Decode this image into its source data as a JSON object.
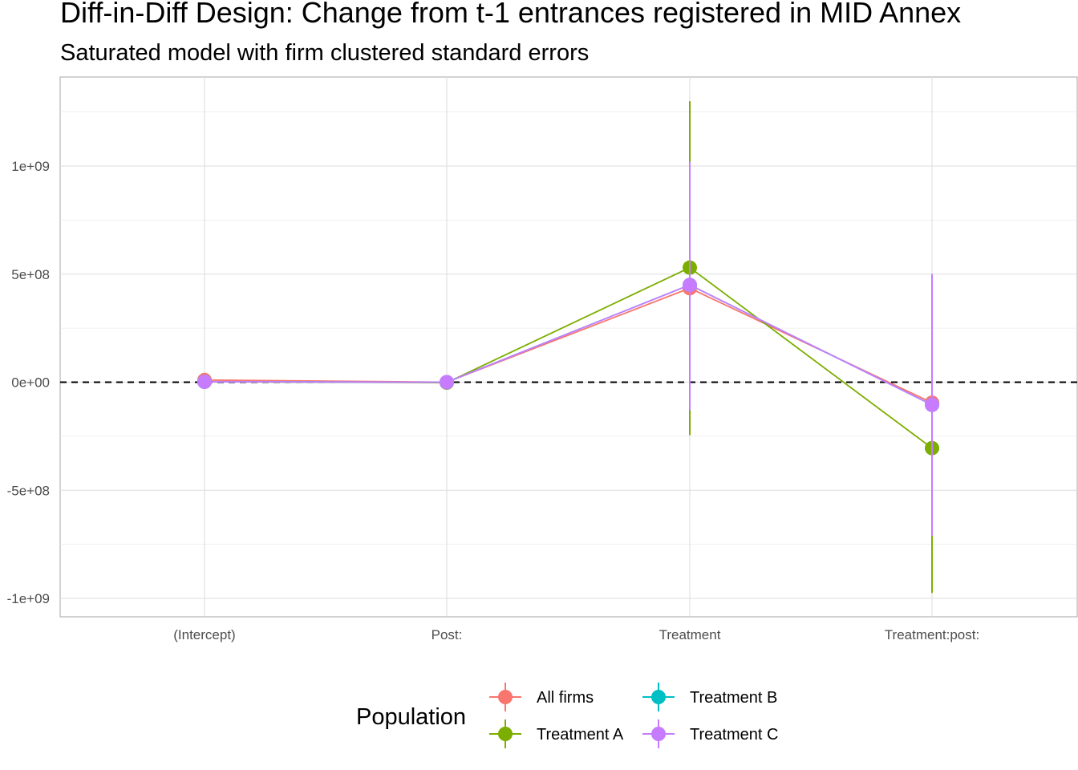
{
  "chart_data": {
    "type": "line",
    "title": "Diff-in-Diff Design: Change from t-1 entrances registered in MID Annex",
    "subtitle": "Saturated model with firm clustered standard errors",
    "xlabel": "",
    "ylabel": "",
    "categories": [
      "(Intercept)",
      "Post:",
      "Treatment",
      "Treatment:post:"
    ],
    "ylim": [
      -1080000000,
      1380000000
    ],
    "y_ticks": [
      -1000000000,
      -500000000,
      0,
      500000000,
      1000000000
    ],
    "y_tick_labels": [
      "-1e+09",
      "-5e+08",
      "0e+00",
      "5e+08",
      "1e+09"
    ],
    "reference_line": {
      "y": 0,
      "style": "dashed"
    },
    "grid": true,
    "legend": {
      "title": "Population",
      "position": "bottom"
    },
    "series": [
      {
        "name": "All firms",
        "color": "#F8766D",
        "values": [
          10000000,
          0,
          435000000,
          -95000000
        ],
        "ci_low": [
          null,
          null,
          -100000000,
          -800000000
        ],
        "ci_high": [
          null,
          null,
          1000000000,
          500000000
        ]
      },
      {
        "name": "Treatment A",
        "color": "#7CAE00",
        "values": [
          2000000,
          -2000000,
          530000000,
          -305000000
        ],
        "ci_low": [
          null,
          null,
          -245000000,
          -975000000
        ],
        "ci_high": [
          null,
          null,
          1300000000,
          370000000
        ]
      },
      {
        "name": "Treatment B",
        "color": "#00BFC4",
        "values": [
          2000000,
          0,
          450000000,
          -105000000
        ],
        "ci_low": [
          null,
          null,
          -130000000,
          -710000000
        ],
        "ci_high": [
          null,
          null,
          1020000000,
          500000000
        ]
      },
      {
        "name": "Treatment C",
        "color": "#C77CFF",
        "values": [
          2000000,
          0,
          450000000,
          -105000000
        ],
        "ci_low": [
          null,
          null,
          -130000000,
          -710000000
        ],
        "ci_high": [
          null,
          null,
          1020000000,
          500000000
        ]
      }
    ]
  }
}
